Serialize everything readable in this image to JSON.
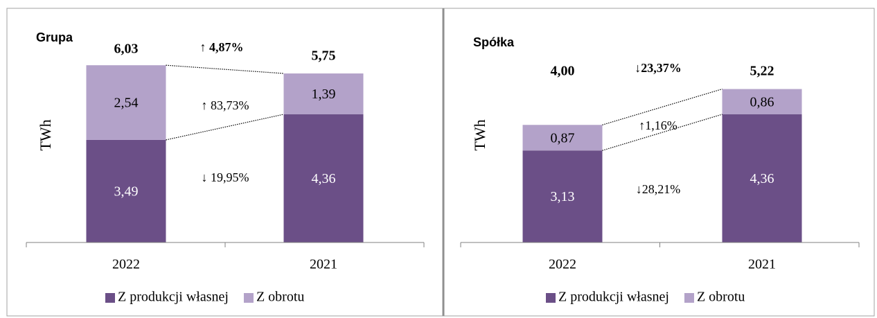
{
  "chart_data": [
    {
      "type": "bar",
      "stacked": true,
      "title": "Grupa",
      "y_label": "TWh",
      "categories": [
        "2022",
        "2021"
      ],
      "series": [
        {
          "name": "Z produkcji własnej",
          "color": "#6b4f87",
          "values": [
            3.49,
            4.36
          ],
          "value_labels": [
            "3,49",
            "4,36"
          ]
        },
        {
          "name": "Z obrotu",
          "color": "#b3a2c9",
          "values": [
            2.54,
            1.39
          ],
          "value_labels": [
            "2,54",
            "1,39"
          ]
        }
      ],
      "totals": {
        "values": [
          6.03,
          5.75
        ],
        "value_labels": [
          "6,03",
          "5,75"
        ]
      },
      "annotations": [
        "↑ 4,87%",
        "↑ 83,73%",
        "↓ 19,95%"
      ],
      "ylim": [
        0,
        7
      ],
      "legend": "bottom"
    },
    {
      "type": "bar",
      "stacked": true,
      "title": "Spółka",
      "y_label": "TWh",
      "categories": [
        "2022",
        "2021"
      ],
      "series": [
        {
          "name": "Z produkcji własnej",
          "color": "#6b4f87",
          "values": [
            3.13,
            4.36
          ],
          "value_labels": [
            "3,13",
            "4,36"
          ]
        },
        {
          "name": "Z obrotu",
          "color": "#b3a2c9",
          "values": [
            0.87,
            0.86
          ],
          "value_labels": [
            "0,87",
            "0,86"
          ]
        }
      ],
      "totals": {
        "values": [
          4.0,
          5.22
        ],
        "value_labels": [
          "4,00",
          "5,22"
        ]
      },
      "annotations": [
        "↓23,37%",
        "↑1,16%",
        "↓28,21%"
      ],
      "ylim": [
        0,
        7
      ],
      "legend": "bottom"
    }
  ]
}
